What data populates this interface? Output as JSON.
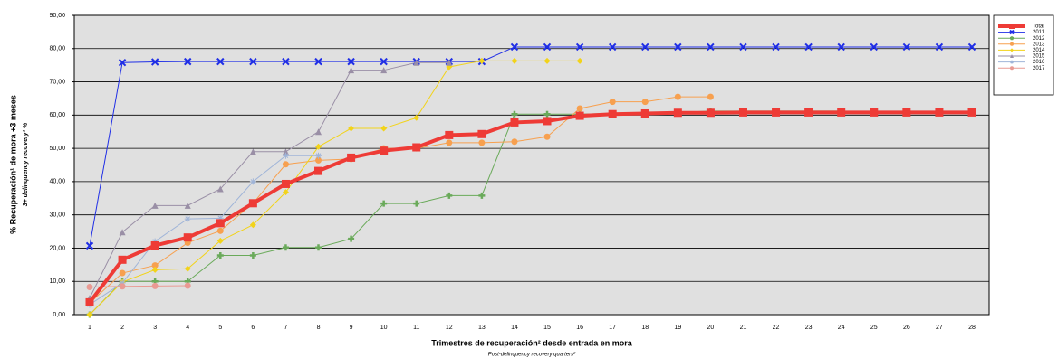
{
  "chart_data": {
    "type": "line",
    "y_label": "% Recuperación¹ de mora +3 meses",
    "y_sublabel": "3+ delinquency recovery¹ %",
    "x_label": "Trimestres de recuperación² desde entrada en mora",
    "x_sublabel": "Post-delinquency recovery quarters²",
    "categories": [
      "1",
      "2",
      "3",
      "4",
      "5",
      "6",
      "7",
      "8",
      "9",
      "10",
      "11",
      "12",
      "13",
      "14",
      "15",
      "16",
      "17",
      "18",
      "19",
      "20",
      "21",
      "22",
      "23",
      "24",
      "25",
      "26",
      "27",
      "28"
    ],
    "ylim": [
      0,
      90
    ],
    "yticks": [
      {
        "value": 0,
        "label": "0,00"
      },
      {
        "value": 10,
        "label": "10,00"
      },
      {
        "value": 20,
        "label": "20,00"
      },
      {
        "value": 30,
        "label": "30,00"
      },
      {
        "value": 40,
        "label": "40,00"
      },
      {
        "value": 50,
        "label": "50,00"
      },
      {
        "value": 60,
        "label": "60,00"
      },
      {
        "value": 70,
        "label": "70,00"
      },
      {
        "value": 80,
        "label": "80,00"
      },
      {
        "value": 90,
        "label": "90,00"
      }
    ],
    "grid": true,
    "legend_position": "right",
    "series": [
      {
        "name": "Total",
        "color": "#ee3b36",
        "marker": "square",
        "width": 4,
        "values": [
          3.7,
          16.5,
          20.8,
          23.2,
          27.5,
          33.5,
          39.3,
          43.2,
          47.2,
          49.3,
          50.3,
          54,
          54.3,
          57.8,
          58.2,
          59.8,
          60.3,
          60.5,
          60.7,
          60.7,
          60.8,
          60.8,
          60.8,
          60.8,
          60.8,
          60.8,
          60.8,
          60.8
        ]
      },
      {
        "name": "2011",
        "color": "#1f2ee6",
        "marker": "cross",
        "width": 1,
        "values": [
          20.7,
          75.8,
          76,
          76.1,
          76.1,
          76.1,
          76.1,
          76.1,
          76.1,
          76.1,
          76.1,
          76.1,
          76.1,
          80.5,
          80.5,
          80.5,
          80.5,
          80.5,
          80.5,
          80.5,
          80.5,
          80.5,
          80.5,
          80.5,
          80.5,
          80.5,
          80.5,
          80.5
        ]
      },
      {
        "name": "2012",
        "color": "#6aaa5a",
        "marker": "plus",
        "width": 1,
        "values": [
          0,
          10,
          10,
          10,
          17.8,
          17.8,
          20.2,
          20.2,
          22.8,
          33.4,
          33.4,
          35.8,
          35.8,
          60.3,
          60.3,
          60.3,
          60.5,
          60.5,
          60.8,
          61.2,
          61.2,
          61.2,
          61.2,
          61.2,
          null,
          null,
          null,
          null
        ]
      },
      {
        "name": "2013",
        "color": "#f7a04f",
        "marker": "circle",
        "width": 1,
        "values": [
          3.5,
          12.5,
          14.8,
          21.6,
          25.2,
          33.5,
          45.2,
          46.4,
          46.8,
          50,
          50,
          51.7,
          51.7,
          52,
          53.5,
          62,
          64,
          64,
          65.5,
          65.5,
          null,
          null,
          null,
          null,
          null,
          null,
          null,
          null
        ]
      },
      {
        "name": "2014",
        "color": "#f2d31a",
        "marker": "diamond",
        "width": 1,
        "values": [
          0,
          9.8,
          13.5,
          13.8,
          22.2,
          27,
          36.8,
          50.5,
          56,
          56,
          59.2,
          74.5,
          76.3,
          76.3,
          76.3,
          76.3,
          null,
          null,
          null,
          null,
          null,
          null,
          null,
          null,
          null,
          null,
          null,
          null
        ]
      },
      {
        "name": "2015",
        "color": "#9a8fa6",
        "marker": "triangle",
        "width": 1,
        "values": [
          5,
          24.8,
          32.8,
          32.8,
          37.8,
          49,
          49,
          55,
          73.5,
          73.5,
          75.8,
          75.8,
          null,
          null,
          null,
          null,
          null,
          null,
          null,
          null,
          null,
          null,
          null,
          null,
          null,
          null,
          null,
          null
        ]
      },
      {
        "name": "2016",
        "color": "#9fb4d8",
        "marker": "star",
        "width": 1,
        "values": [
          3,
          9.5,
          22,
          28.8,
          29,
          40,
          47.8,
          47.8,
          null,
          null,
          null,
          null,
          null,
          null,
          null,
          null,
          null,
          null,
          null,
          null,
          null,
          null,
          null,
          null,
          null,
          null,
          null,
          null
        ]
      },
      {
        "name": "2017",
        "color": "#e99a93",
        "marker": "circle",
        "width": 1,
        "values": [
          8.3,
          8.5,
          8.6,
          8.7,
          null,
          null,
          null,
          null,
          null,
          null,
          null,
          null,
          null,
          null,
          null,
          null,
          null,
          null,
          null,
          null,
          null,
          null,
          null,
          null,
          null,
          null,
          null,
          null
        ]
      }
    ]
  }
}
